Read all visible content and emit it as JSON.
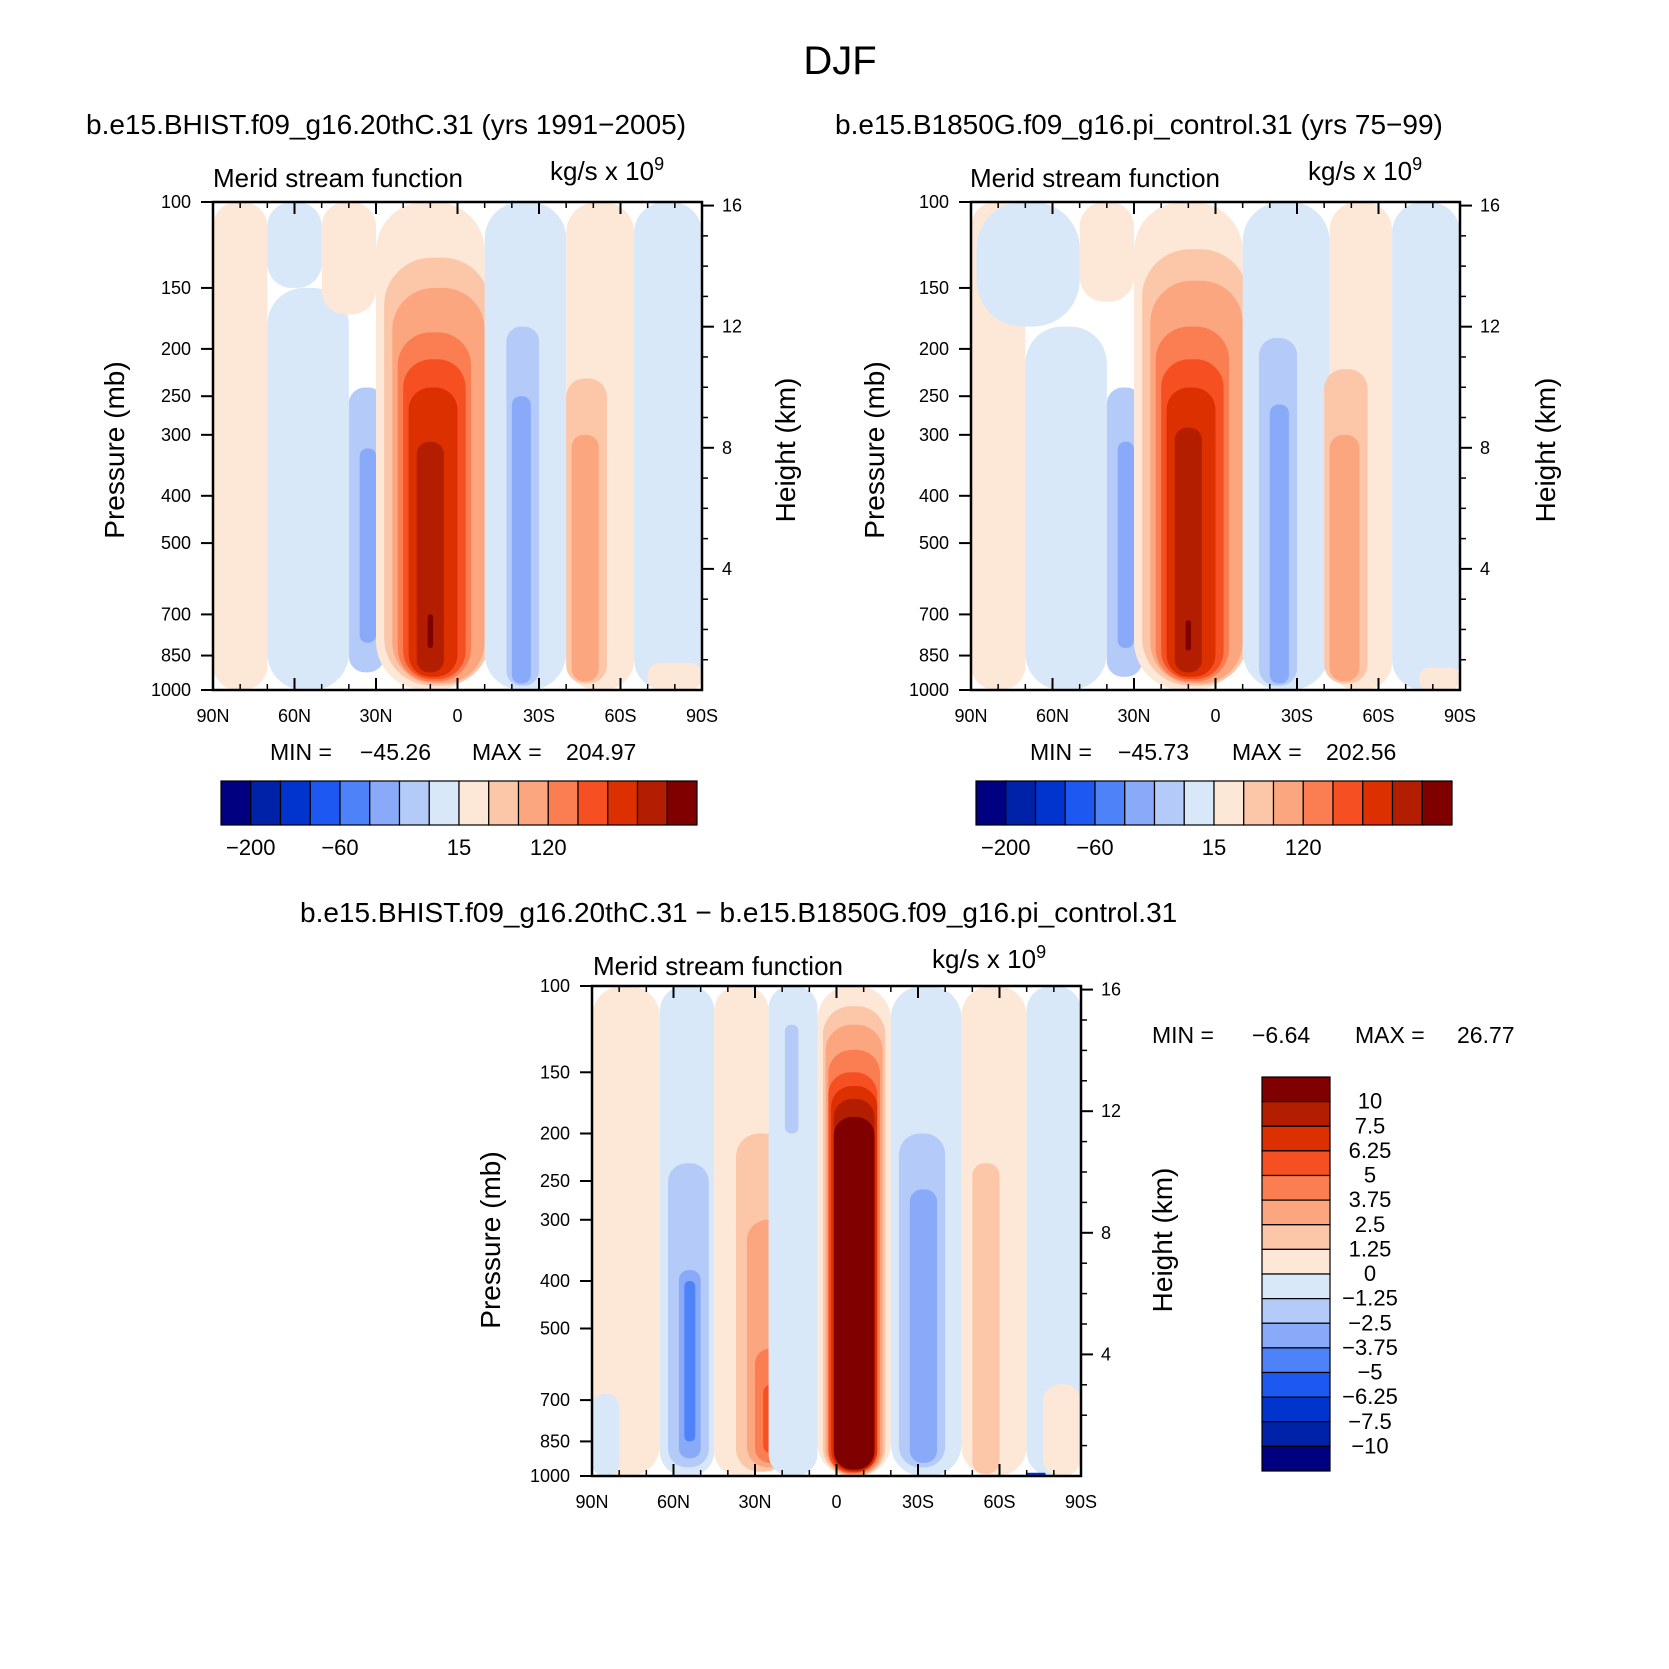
{
  "figure_title": "DJF",
  "panel_titles": {
    "left": "b.e15.BHIST.f09_g16.20thC.31 (yrs 1991−2005)",
    "right": "b.e15.B1850G.f09_g16.pi_control.31 (yrs 75−99)",
    "diff": "b.e15.BHIST.f09_g16.20thC.31 − b.e15.B1850G.f09_g16.pi_control.31"
  },
  "colors": {
    "top": [
      "#000080",
      "#0022a8",
      "#0034cc",
      "#1d58f0",
      "#4e82f8",
      "#88aaf8",
      "#b4caf8",
      "#d8e8f8",
      "#fde8d8",
      "#fcc6a8",
      "#fca680",
      "#fa7e52",
      "#f65022",
      "#dc3000",
      "#b41e00",
      "#800000"
    ],
    "diff": [
      "#000080",
      "#0022a8",
      "#0034cc",
      "#1d58f0",
      "#4e82f8",
      "#88aaf8",
      "#b4caf8",
      "#d8e8f8",
      "#fde8d8",
      "#fcc6a8",
      "#fca680",
      "#fa7e52",
      "#f65022",
      "#dc3000",
      "#b41e00",
      "#800000"
    ]
  },
  "chart_data": [
    {
      "id": "left",
      "type": "heatmap",
      "title": "Merid stream function",
      "units": "kg/s x 10",
      "units_exp": "9",
      "xlabel": "",
      "ylabel": "Pressure (mb)",
      "y2label": "Height (km)",
      "x_ticks": [
        "90N",
        "60N",
        "30N",
        "0",
        "30S",
        "60S",
        "90S"
      ],
      "x_range": [
        90,
        -90
      ],
      "y_ticks": [
        100,
        150,
        200,
        250,
        300,
        400,
        500,
        700,
        850,
        1000
      ],
      "y_range": [
        100,
        1000
      ],
      "y2_ticks": [
        16,
        12,
        8,
        4
      ],
      "min_label": "MIN =",
      "min_value": "−45.26",
      "max_label": "MAX =",
      "max_value": "204.97",
      "cells": [
        {
          "lat1": 90,
          "lat2": 70,
          "p1": 100,
          "p2": 1000,
          "c": 8
        },
        {
          "lat1": 70,
          "lat2": 50,
          "p1": 100,
          "p2": 150,
          "c": 7
        },
        {
          "lat1": 70,
          "lat2": 40,
          "p1": 150,
          "p2": 1000,
          "c": 7
        },
        {
          "lat1": 50,
          "lat2": 30,
          "p1": 100,
          "p2": 170,
          "c": 8
        },
        {
          "lat1": 40,
          "lat2": 27,
          "p1": 240,
          "p2": 920,
          "c": 6
        },
        {
          "lat1": 36,
          "lat2": 30,
          "p1": 320,
          "p2": 800,
          "c": 5
        },
        {
          "lat1": 30,
          "lat2": -10,
          "p1": 100,
          "p2": 1000,
          "c": 8
        },
        {
          "lat1": 27,
          "lat2": -12,
          "p1": 130,
          "p2": 980,
          "c": 9
        },
        {
          "lat1": 24,
          "lat2": -10,
          "p1": 150,
          "p2": 970,
          "c": 10
        },
        {
          "lat1": 22,
          "lat2": -5,
          "p1": 185,
          "p2": 960,
          "c": 11
        },
        {
          "lat1": 20,
          "lat2": -3,
          "p1": 210,
          "p2": 950,
          "c": 12
        },
        {
          "lat1": 18,
          "lat2": 0,
          "p1": 240,
          "p2": 940,
          "c": 13
        },
        {
          "lat1": 15,
          "lat2": 5,
          "p1": 310,
          "p2": 920,
          "c": 14
        },
        {
          "lat1": 11,
          "lat2": 9,
          "p1": 700,
          "p2": 820,
          "c": 15
        },
        {
          "lat1": -10,
          "lat2": -40,
          "p1": 100,
          "p2": 1000,
          "c": 7
        },
        {
          "lat1": -18,
          "lat2": -30,
          "p1": 180,
          "p2": 980,
          "c": 6
        },
        {
          "lat1": -20,
          "lat2": -27,
          "p1": 250,
          "p2": 970,
          "c": 5
        },
        {
          "lat1": -40,
          "lat2": -65,
          "p1": 100,
          "p2": 1000,
          "c": 8
        },
        {
          "lat1": -40,
          "lat2": -55,
          "p1": 230,
          "p2": 970,
          "c": 9
        },
        {
          "lat1": -42,
          "lat2": -52,
          "p1": 300,
          "p2": 960,
          "c": 10
        },
        {
          "lat1": -65,
          "lat2": -90,
          "p1": 100,
          "p2": 1000,
          "c": 7
        },
        {
          "lat1": -70,
          "lat2": -90,
          "p1": 880,
          "p2": 1000,
          "c": 8
        }
      ],
      "colorbar": {
        "labels": [
          "−200",
          "−60",
          "15",
          "120"
        ]
      }
    },
    {
      "id": "right",
      "type": "heatmap",
      "title": "Merid stream function",
      "units": "kg/s x 10",
      "units_exp": "9",
      "xlabel": "",
      "ylabel": "Pressure (mb)",
      "y2label": "Height (km)",
      "x_ticks": [
        "90N",
        "60N",
        "30N",
        "0",
        "30S",
        "60S",
        "90S"
      ],
      "x_range": [
        90,
        -90
      ],
      "y_ticks": [
        100,
        150,
        200,
        250,
        300,
        400,
        500,
        700,
        850,
        1000
      ],
      "y_range": [
        100,
        1000
      ],
      "y2_ticks": [
        16,
        12,
        8,
        4
      ],
      "min_label": "MIN =",
      "min_value": "−45.73",
      "max_label": "MAX =",
      "max_value": "202.56",
      "cells": [
        {
          "lat1": 90,
          "lat2": 70,
          "p1": 100,
          "p2": 1000,
          "c": 8
        },
        {
          "lat1": 88,
          "lat2": 50,
          "p1": 100,
          "p2": 180,
          "c": 7
        },
        {
          "lat1": 70,
          "lat2": 40,
          "p1": 180,
          "p2": 1000,
          "c": 7
        },
        {
          "lat1": 50,
          "lat2": 30,
          "p1": 100,
          "p2": 160,
          "c": 8
        },
        {
          "lat1": 40,
          "lat2": 27,
          "p1": 240,
          "p2": 940,
          "c": 6
        },
        {
          "lat1": 36,
          "lat2": 30,
          "p1": 310,
          "p2": 820,
          "c": 5
        },
        {
          "lat1": 30,
          "lat2": -10,
          "p1": 100,
          "p2": 1000,
          "c": 8
        },
        {
          "lat1": 27,
          "lat2": -12,
          "p1": 125,
          "p2": 980,
          "c": 9
        },
        {
          "lat1": 24,
          "lat2": -10,
          "p1": 145,
          "p2": 970,
          "c": 10
        },
        {
          "lat1": 22,
          "lat2": -5,
          "p1": 180,
          "p2": 960,
          "c": 11
        },
        {
          "lat1": 20,
          "lat2": -3,
          "p1": 210,
          "p2": 950,
          "c": 12
        },
        {
          "lat1": 18,
          "lat2": 0,
          "p1": 240,
          "p2": 940,
          "c": 13
        },
        {
          "lat1": 15,
          "lat2": 5,
          "p1": 290,
          "p2": 920,
          "c": 14
        },
        {
          "lat1": 11,
          "lat2": 9,
          "p1": 720,
          "p2": 830,
          "c": 15
        },
        {
          "lat1": -10,
          "lat2": -42,
          "p1": 100,
          "p2": 1000,
          "c": 7
        },
        {
          "lat1": -16,
          "lat2": -30,
          "p1": 190,
          "p2": 980,
          "c": 6
        },
        {
          "lat1": -20,
          "lat2": -27,
          "p1": 260,
          "p2": 970,
          "c": 5
        },
        {
          "lat1": -42,
          "lat2": -65,
          "p1": 100,
          "p2": 1000,
          "c": 8
        },
        {
          "lat1": -40,
          "lat2": -56,
          "p1": 220,
          "p2": 970,
          "c": 9
        },
        {
          "lat1": -42,
          "lat2": -53,
          "p1": 300,
          "p2": 960,
          "c": 10
        },
        {
          "lat1": -65,
          "lat2": -90,
          "p1": 100,
          "p2": 1000,
          "c": 7
        },
        {
          "lat1": -75,
          "lat2": -90,
          "p1": 900,
          "p2": 1000,
          "c": 8
        }
      ],
      "colorbar": {
        "labels": [
          "−200",
          "−60",
          "15",
          "120"
        ]
      }
    },
    {
      "id": "diff",
      "type": "heatmap",
      "title": "Merid stream function",
      "units": "kg/s x 10",
      "units_exp": "9",
      "xlabel": "",
      "ylabel": "Pressure (mb)",
      "y2label": "Height (km)",
      "x_ticks": [
        "90N",
        "60N",
        "30N",
        "0",
        "30S",
        "60S",
        "90S"
      ],
      "x_range": [
        90,
        -90
      ],
      "y_ticks": [
        100,
        150,
        200,
        250,
        300,
        400,
        500,
        700,
        850,
        1000
      ],
      "y_range": [
        100,
        1000
      ],
      "y2_ticks": [
        16,
        12,
        8,
        4
      ],
      "min_label": "MIN =",
      "min_value": "−6.64",
      "max_label": "MAX =",
      "max_value": "26.77",
      "cells": [
        {
          "lat1": 90,
          "lat2": 65,
          "p1": 100,
          "p2": 1000,
          "c": 8
        },
        {
          "lat1": 90,
          "lat2": 80,
          "p1": 680,
          "p2": 1000,
          "c": 7
        },
        {
          "lat1": 65,
          "lat2": 45,
          "p1": 100,
          "p2": 1000,
          "c": 7
        },
        {
          "lat1": 62,
          "lat2": 47,
          "p1": 230,
          "p2": 960,
          "c": 6
        },
        {
          "lat1": 58,
          "lat2": 50,
          "p1": 380,
          "p2": 920,
          "c": 5
        },
        {
          "lat1": 56,
          "lat2": 52,
          "p1": 400,
          "p2": 850,
          "c": 4
        },
        {
          "lat1": 45,
          "lat2": 25,
          "p1": 100,
          "p2": 1000,
          "c": 8
        },
        {
          "lat1": 37,
          "lat2": 18,
          "p1": 200,
          "p2": 980,
          "c": 9
        },
        {
          "lat1": 33,
          "lat2": 16,
          "p1": 300,
          "p2": 960,
          "c": 10
        },
        {
          "lat1": 30,
          "lat2": 18,
          "p1": 550,
          "p2": 940,
          "c": 11
        },
        {
          "lat1": 27,
          "lat2": 20,
          "p1": 650,
          "p2": 900,
          "c": 12
        },
        {
          "lat1": 25,
          "lat2": 7,
          "p1": 100,
          "p2": 1000,
          "c": 7
        },
        {
          "lat1": 19,
          "lat2": 14,
          "p1": 120,
          "p2": 200,
          "c": 6
        },
        {
          "lat1": 7,
          "lat2": -20,
          "p1": 100,
          "p2": 1000,
          "c": 8
        },
        {
          "lat1": 5,
          "lat2": -18,
          "p1": 110,
          "p2": 1000,
          "c": 9
        },
        {
          "lat1": 4,
          "lat2": -17,
          "p1": 120,
          "p2": 995,
          "c": 10
        },
        {
          "lat1": 3,
          "lat2": -16,
          "p1": 135,
          "p2": 990,
          "c": 11
        },
        {
          "lat1": 3,
          "lat2": -15,
          "p1": 150,
          "p2": 985,
          "c": 12
        },
        {
          "lat1": 2,
          "lat2": -15,
          "p1": 160,
          "p2": 980,
          "c": 13
        },
        {
          "lat1": 1,
          "lat2": -14,
          "p1": 170,
          "p2": 975,
          "c": 14
        },
        {
          "lat1": 1,
          "lat2": -14,
          "p1": 185,
          "p2": 970,
          "c": 15
        },
        {
          "lat1": -20,
          "lat2": -46,
          "p1": 100,
          "p2": 1000,
          "c": 7
        },
        {
          "lat1": -23,
          "lat2": -40,
          "p1": 200,
          "p2": 960,
          "c": 6
        },
        {
          "lat1": -27,
          "lat2": -37,
          "p1": 260,
          "p2": 940,
          "c": 5
        },
        {
          "lat1": -46,
          "lat2": -70,
          "p1": 100,
          "p2": 1000,
          "c": 8
        },
        {
          "lat1": -50,
          "lat2": -60,
          "p1": 230,
          "p2": 990,
          "c": 9
        },
        {
          "lat1": -70,
          "lat2": -90,
          "p1": 100,
          "p2": 1000,
          "c": 7
        },
        {
          "lat1": -76,
          "lat2": -90,
          "p1": 650,
          "p2": 1000,
          "c": 8
        },
        {
          "lat1": -70,
          "lat2": -77,
          "p1": 985,
          "p2": 1000,
          "c": 2
        }
      ],
      "colorbar": {
        "labels": [
          "10",
          "7.5",
          "6.25",
          "5",
          "3.75",
          "2.5",
          "1.25",
          "0",
          "−1.25",
          "−2.5",
          "−3.75",
          "−5",
          "−6.25",
          "−7.5",
          "−10"
        ]
      }
    }
  ]
}
